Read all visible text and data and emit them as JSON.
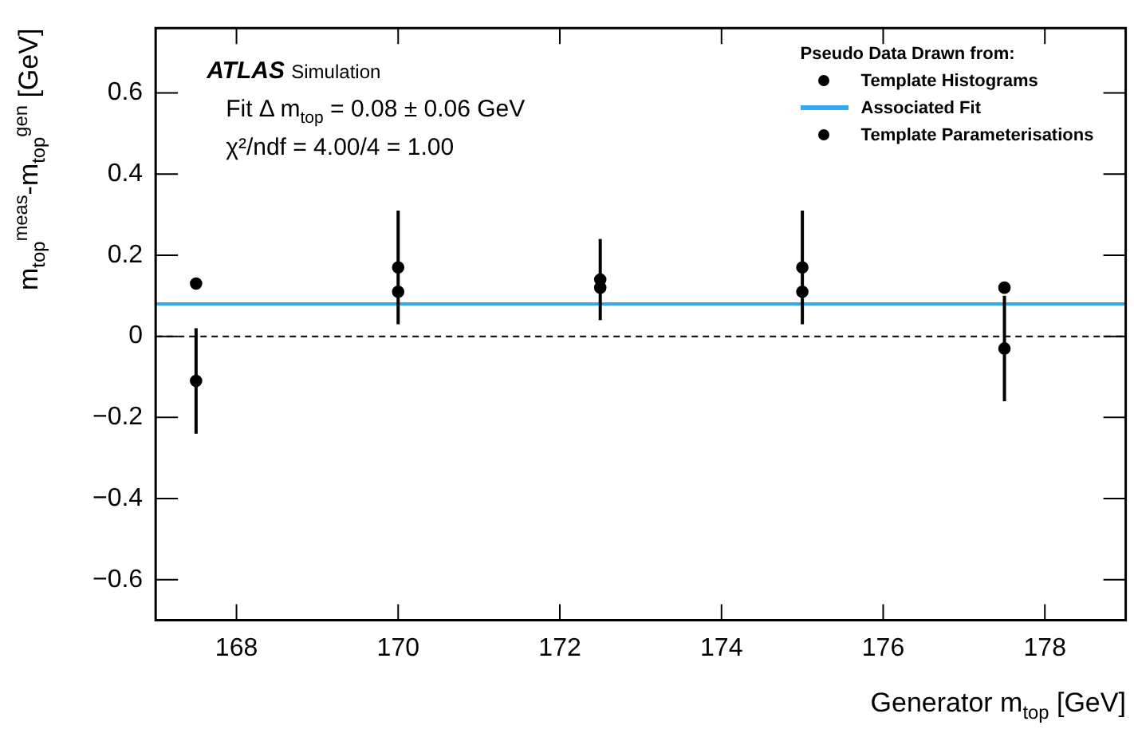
{
  "chart_data": {
    "type": "scatter",
    "xlabel": "Generator m$_{top}$ [GeV]",
    "ylabel": "m$_{top}$$^{meas}$-m$_{top}$$^{gen}$ [GeV]",
    "legend_title": "Pseudo Data Drawn from:",
    "annotations": [
      "ATLAS Simulation",
      "Fit Δ m$_{top}$ = 0.08 ± 0.06 GeV",
      "χ²/ndf = 4.00/4 = 1.00"
    ],
    "x": [
      167.5,
      170,
      172.5,
      175,
      177.5
    ],
    "series": [
      {
        "name": "Template Histograms",
        "color": "#000000",
        "values": [
          -0.11,
          0.17,
          0.14,
          0.17,
          -0.03
        ],
        "errors": [
          0.13,
          0.14,
          0.1,
          0.14,
          0.13
        ]
      },
      {
        "name": "Associated Fit",
        "type": "line",
        "color": "#33aaee",
        "x": [
          167,
          179
        ],
        "values": [
          0.08,
          0.08
        ],
        "marker": "none"
      },
      {
        "name": "Template Parameterisations",
        "color": "#000000",
        "values": [
          0.13,
          0.11,
          0.12,
          0.11,
          0.12
        ]
      }
    ],
    "marker": "circle",
    "xlim": [
      167,
      179
    ],
    "xticks": [
      168,
      170,
      172,
      174,
      176,
      178
    ],
    "ylim": [
      -0.7,
      0.76
    ],
    "yticks": [
      {
        "value": -0.6,
        "label": "−0.6"
      },
      {
        "value": -0.4,
        "label": "−0.4"
      },
      {
        "value": -0.2,
        "label": "−0.2"
      },
      0,
      0.2,
      0.4,
      0.6
    ],
    "ref_lines": [
      {
        "axis": "y",
        "value": 0,
        "color": "#000000",
        "line_style": "dashed"
      }
    ],
    "grid": false,
    "legend": "top right"
  }
}
